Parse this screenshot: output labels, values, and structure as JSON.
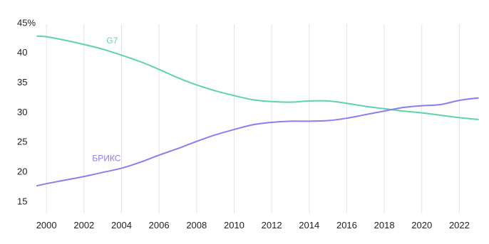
{
  "chart_data": {
    "type": "line",
    "title": "",
    "xlabel": "",
    "ylabel": "",
    "x": [
      1999,
      2000,
      2001,
      2002,
      2003,
      2004,
      2005,
      2006,
      2007,
      2008,
      2009,
      2010,
      2011,
      2012,
      2013,
      2014,
      2015,
      2016,
      2017,
      2018,
      2019,
      2020,
      2021,
      2022,
      2023
    ],
    "x_ticks": [
      2000,
      2002,
      2004,
      2006,
      2008,
      2010,
      2012,
      2014,
      2016,
      2018,
      2020,
      2022
    ],
    "x_tick_labels": [
      "2000",
      "2002",
      "2004",
      "2006",
      "2008",
      "2010",
      "2012",
      "2014",
      "2016",
      "2018",
      "2020",
      "2022"
    ],
    "xlim": [
      1999.5,
      2023.2
    ],
    "y_ticks": [
      15,
      20,
      25,
      30,
      35,
      40,
      45
    ],
    "y_tick_labels": [
      "15",
      "20",
      "25",
      "30",
      "35",
      "40",
      "45%"
    ],
    "ylim": [
      13,
      46
    ],
    "grid": "vertical",
    "legend": "inline labels",
    "series": [
      {
        "name": "G7",
        "color": "#5fd1b3",
        "label_at": [
          2003.5,
          41.6
        ],
        "values": [
          42.9,
          42.7,
          42.1,
          41.4,
          40.6,
          39.6,
          38.5,
          37.2,
          35.8,
          34.6,
          33.6,
          32.8,
          32.1,
          31.8,
          31.7,
          31.9,
          31.9,
          31.5,
          31.0,
          30.6,
          30.2,
          29.9,
          29.5,
          29.1,
          28.8
        ]
      },
      {
        "name": "БРИКС",
        "color": "#8b7ef0",
        "label_at": [
          2003.2,
          21.8
        ],
        "values": [
          17.3,
          18.0,
          18.6,
          19.2,
          19.9,
          20.6,
          21.6,
          22.8,
          23.9,
          25.1,
          26.2,
          27.1,
          27.9,
          28.3,
          28.5,
          28.5,
          28.6,
          29.0,
          29.6,
          30.2,
          30.8,
          31.1,
          31.3,
          32.0,
          32.4
        ]
      }
    ]
  }
}
